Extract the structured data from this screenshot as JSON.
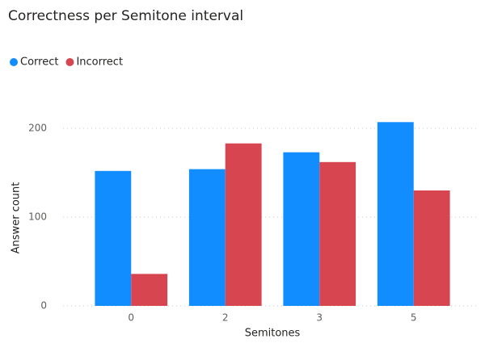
{
  "chart_data": {
    "type": "bar",
    "title": "Correctness per Semitone interval",
    "x_label": "Semitones",
    "y_label": "Answer count",
    "categories": [
      "0",
      "2",
      "3",
      "5"
    ],
    "series": [
      {
        "name": "Correct",
        "color": "#118dff",
        "values": [
          152,
          154,
          173,
          207
        ]
      },
      {
        "name": "Incorrect",
        "color": "#d64550",
        "values": [
          36,
          183,
          162,
          130
        ]
      }
    ],
    "ylim": [
      0,
      220
    ],
    "yticks": [
      0,
      100,
      200
    ],
    "grid": true,
    "legend": "top-left"
  }
}
